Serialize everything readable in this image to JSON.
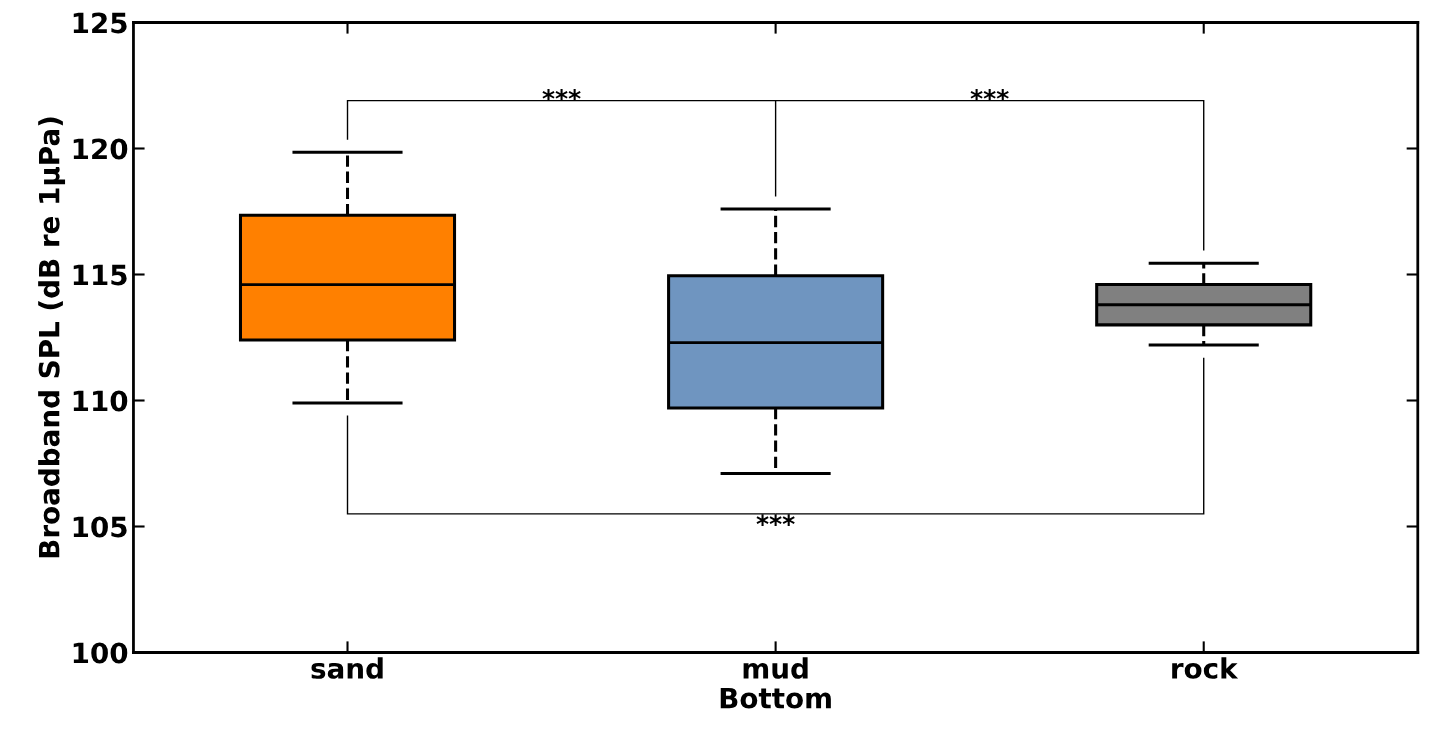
{
  "chart_data": {
    "type": "box",
    "xlabel": "Bottom",
    "ylabel": "Broadband SPL (dB re 1µPa)",
    "categories": [
      "sand",
      "mud",
      "rock"
    ],
    "colors": [
      "#ff8000",
      "#6f95c0",
      "#808080"
    ],
    "boxes": [
      {
        "low": 109.9,
        "q1": 112.4,
        "median": 114.6,
        "q3": 117.35,
        "high": 119.85
      },
      {
        "low": 107.1,
        "q1": 109.7,
        "median": 112.3,
        "q3": 114.95,
        "high": 117.6
      },
      {
        "low": 112.2,
        "q1": 113.0,
        "median": 113.8,
        "q3": 114.6,
        "high": 115.45
      }
    ],
    "ylim": [
      100,
      125
    ],
    "yticks": [
      100,
      105,
      110,
      115,
      120,
      125
    ],
    "grid": false,
    "annotations": [
      "***",
      "***",
      "***"
    ]
  }
}
